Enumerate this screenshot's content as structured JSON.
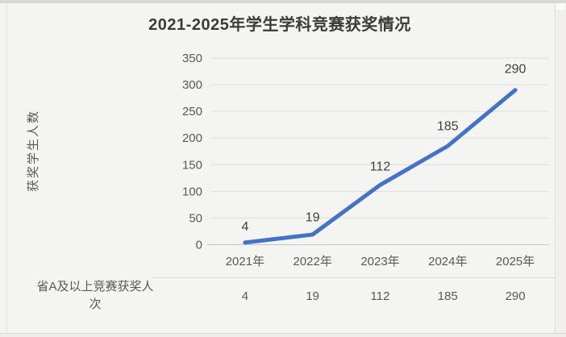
{
  "window": {
    "bg": "#f4f4f3",
    "top_band_color": "#d8d8d7",
    "scrollbar_track_color": "#f1f0ef"
  },
  "chart_data": {
    "type": "line",
    "title": "2021-2025年学生学科竞赛获奖情况",
    "xlabel": "",
    "ylabel": "获奖学生人数",
    "categories": [
      "2021年",
      "2022年",
      "2023年",
      "2024年",
      "2025年"
    ],
    "series": [
      {
        "name": "省A及以上竞赛获奖人次",
        "values": [
          4,
          19,
          112,
          185,
          290
        ]
      }
    ],
    "data_labels": [
      "4",
      "19",
      "112",
      "185",
      "290"
    ],
    "ylim": [
      0,
      350
    ],
    "yticks": [
      0,
      50,
      100,
      150,
      200,
      250,
      300,
      350
    ],
    "grid": true,
    "legend_position": "none",
    "table_row": {
      "label": "省A及以上竞赛获奖人次",
      "values": [
        "4",
        "19",
        "112",
        "185",
        "290"
      ]
    },
    "colors": {
      "line": "#4472c4",
      "grid": "#dedddd",
      "axis_line": "#c6c5c4",
      "tick_label": "#595959",
      "data_label": "#404040",
      "title": "#3b3b3b"
    }
  }
}
